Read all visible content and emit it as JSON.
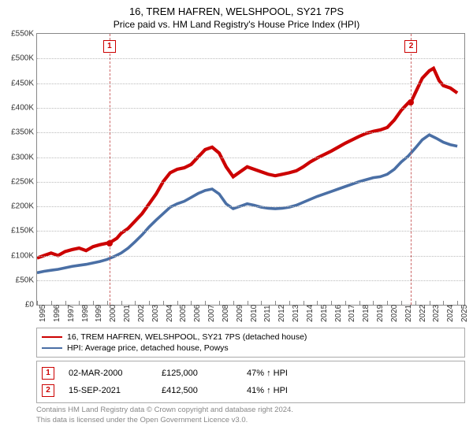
{
  "title_line1": "16, TREM HAFREN, WELSHPOOL, SY21 7PS",
  "title_line2": "Price paid vs. HM Land Registry's House Price Index (HPI)",
  "chart": {
    "type": "line",
    "background_color": "#ffffff",
    "grid_color": "#bbbbbb",
    "axis_color": "#888888",
    "x_start": 1995,
    "x_end": 2025.5,
    "y_min": 0,
    "y_max": 550,
    "y_tick_step": 50,
    "y_tick_prefix": "£",
    "y_tick_suffix": "K",
    "x_ticks": [
      1995,
      1996,
      1997,
      1998,
      1999,
      2000,
      2001,
      2002,
      2003,
      2004,
      2005,
      2006,
      2007,
      2008,
      2009,
      2010,
      2011,
      2012,
      2013,
      2014,
      2015,
      2016,
      2017,
      2018,
      2019,
      2020,
      2021,
      2022,
      2023,
      2024,
      2025
    ],
    "series": [
      {
        "name": "property",
        "label": "16, TREM HAFREN, WELSHPOOL, SY21 7PS (detached house)",
        "color": "#cc0000",
        "line_width": 1.4,
        "points": [
          [
            1995,
            95
          ],
          [
            1995.5,
            100
          ],
          [
            1996,
            105
          ],
          [
            1996.5,
            100
          ],
          [
            1997,
            108
          ],
          [
            1997.5,
            112
          ],
          [
            1998,
            115
          ],
          [
            1998.5,
            110
          ],
          [
            1999,
            118
          ],
          [
            1999.5,
            122
          ],
          [
            2000,
            125
          ],
          [
            2000.2,
            126
          ],
          [
            2000.7,
            135
          ],
          [
            2001,
            145
          ],
          [
            2001.5,
            155
          ],
          [
            2002,
            170
          ],
          [
            2002.5,
            185
          ],
          [
            2003,
            205
          ],
          [
            2003.5,
            225
          ],
          [
            2004,
            250
          ],
          [
            2004.5,
            268
          ],
          [
            2005,
            275
          ],
          [
            2005.5,
            278
          ],
          [
            2006,
            285
          ],
          [
            2006.5,
            300
          ],
          [
            2007,
            315
          ],
          [
            2007.5,
            320
          ],
          [
            2008,
            308
          ],
          [
            2008.5,
            280
          ],
          [
            2009,
            260
          ],
          [
            2009.5,
            270
          ],
          [
            2010,
            280
          ],
          [
            2010.5,
            275
          ],
          [
            2011,
            270
          ],
          [
            2011.5,
            265
          ],
          [
            2012,
            262
          ],
          [
            2012.5,
            265
          ],
          [
            2013,
            268
          ],
          [
            2013.5,
            272
          ],
          [
            2014,
            280
          ],
          [
            2014.5,
            290
          ],
          [
            2015,
            298
          ],
          [
            2015.5,
            305
          ],
          [
            2016,
            312
          ],
          [
            2016.5,
            320
          ],
          [
            2017,
            328
          ],
          [
            2017.5,
            335
          ],
          [
            2018,
            342
          ],
          [
            2018.5,
            348
          ],
          [
            2019,
            352
          ],
          [
            2019.5,
            355
          ],
          [
            2020,
            360
          ],
          [
            2020.5,
            375
          ],
          [
            2021,
            395
          ],
          [
            2021.5,
            410
          ],
          [
            2021.7,
            412
          ],
          [
            2022,
            430
          ],
          [
            2022.5,
            460
          ],
          [
            2023,
            475
          ],
          [
            2023.3,
            480
          ],
          [
            2023.7,
            455
          ],
          [
            2024,
            445
          ],
          [
            2024.5,
            440
          ],
          [
            2025,
            430
          ]
        ]
      },
      {
        "name": "hpi",
        "label": "HPI: Average price, detached house, Powys",
        "color": "#4a6fa5",
        "line_width": 1.2,
        "points": [
          [
            1995,
            65
          ],
          [
            1995.5,
            68
          ],
          [
            1996,
            70
          ],
          [
            1996.5,
            72
          ],
          [
            1997,
            75
          ],
          [
            1997.5,
            78
          ],
          [
            1998,
            80
          ],
          [
            1998.5,
            82
          ],
          [
            1999,
            85
          ],
          [
            1999.5,
            88
          ],
          [
            2000,
            92
          ],
          [
            2000.5,
            98
          ],
          [
            2001,
            105
          ],
          [
            2001.5,
            115
          ],
          [
            2002,
            128
          ],
          [
            2002.5,
            142
          ],
          [
            2003,
            158
          ],
          [
            2003.5,
            172
          ],
          [
            2004,
            185
          ],
          [
            2004.5,
            198
          ],
          [
            2005,
            205
          ],
          [
            2005.5,
            210
          ],
          [
            2006,
            218
          ],
          [
            2006.5,
            226
          ],
          [
            2007,
            232
          ],
          [
            2007.5,
            235
          ],
          [
            2008,
            225
          ],
          [
            2008.5,
            205
          ],
          [
            2009,
            195
          ],
          [
            2009.5,
            200
          ],
          [
            2010,
            205
          ],
          [
            2010.5,
            202
          ],
          [
            2011,
            198
          ],
          [
            2011.5,
            196
          ],
          [
            2012,
            195
          ],
          [
            2012.5,
            196
          ],
          [
            2013,
            198
          ],
          [
            2013.5,
            202
          ],
          [
            2014,
            208
          ],
          [
            2014.5,
            214
          ],
          [
            2015,
            220
          ],
          [
            2015.5,
            225
          ],
          [
            2016,
            230
          ],
          [
            2016.5,
            235
          ],
          [
            2017,
            240
          ],
          [
            2017.5,
            245
          ],
          [
            2018,
            250
          ],
          [
            2018.5,
            254
          ],
          [
            2019,
            258
          ],
          [
            2019.5,
            260
          ],
          [
            2020,
            265
          ],
          [
            2020.5,
            275
          ],
          [
            2021,
            290
          ],
          [
            2021.5,
            302
          ],
          [
            2022,
            318
          ],
          [
            2022.5,
            335
          ],
          [
            2023,
            345
          ],
          [
            2023.5,
            338
          ],
          [
            2024,
            330
          ],
          [
            2024.5,
            325
          ],
          [
            2025,
            322
          ]
        ]
      }
    ],
    "event_markers": [
      {
        "n": "1",
        "x": 2000.17,
        "y": 125,
        "color": "#cc0000"
      },
      {
        "n": "2",
        "x": 2021.7,
        "y": 412,
        "color": "#cc0000"
      }
    ],
    "vlines": [
      {
        "x": 2000.17,
        "color": "#cc6666"
      },
      {
        "x": 2021.7,
        "color": "#cc6666"
      }
    ]
  },
  "legend": {
    "items": [
      {
        "color": "#cc0000",
        "label": "16, TREM HAFREN, WELSHPOOL, SY21 7PS (detached house)"
      },
      {
        "color": "#4a6fa5",
        "label": "HPI: Average price, detached house, Powys"
      }
    ]
  },
  "events": [
    {
      "n": "1",
      "date": "02-MAR-2000",
      "price": "£125,000",
      "pct": "47% ↑ HPI"
    },
    {
      "n": "2",
      "date": "15-SEP-2021",
      "price": "£412,500",
      "pct": "41% ↑ HPI"
    }
  ],
  "footer_line1": "Contains HM Land Registry data © Crown copyright and database right 2024.",
  "footer_line2": "This data is licensed under the Open Government Licence v3.0."
}
